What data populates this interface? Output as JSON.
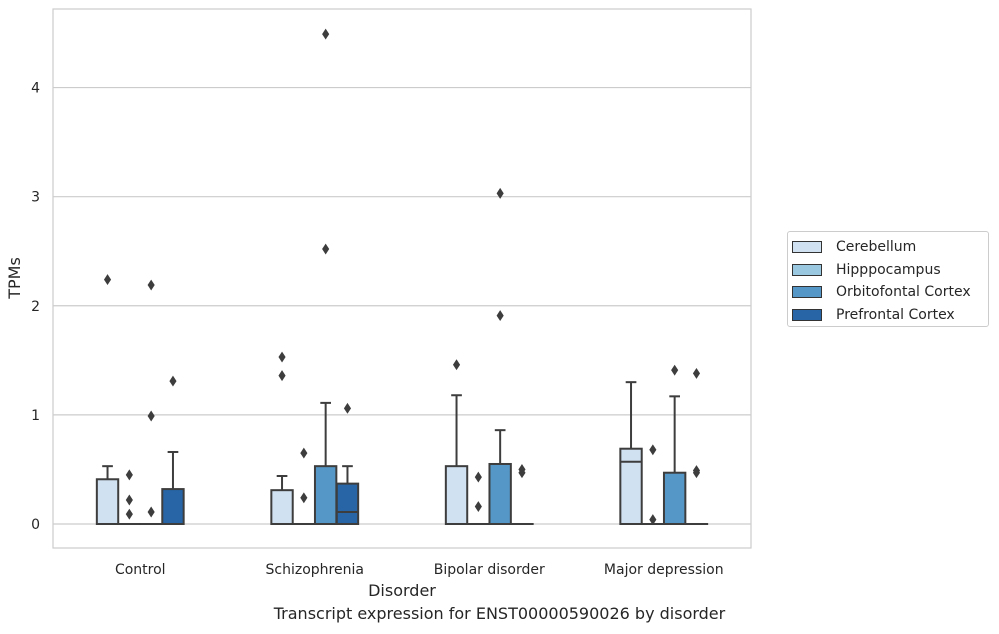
{
  "chart_data": {
    "type": "box",
    "title": "Transcript expression for ENST00000590026 by disorder",
    "xlabel": "Disorder",
    "ylabel": "TPMs",
    "ylim": [
      -0.22,
      4.72
    ],
    "yticks": [
      0,
      1,
      2,
      3,
      4
    ],
    "categories": [
      "Control",
      "Schizophrenia",
      "Bipolar disorder",
      "Major depression"
    ],
    "grid": "horizontal",
    "legend_position": "right",
    "series": [
      {
        "name": "Cerebellum",
        "color": "#d0e1f2",
        "boxes": [
          {
            "q1": 0,
            "median": 0,
            "q3": 0.41,
            "whisker_low": 0,
            "whisker_high": 0.53,
            "outliers": [
              2.24
            ]
          },
          {
            "q1": 0,
            "median": 0,
            "q3": 0.31,
            "whisker_low": 0,
            "whisker_high": 0.44,
            "outliers": [
              1.36,
              1.53
            ]
          },
          {
            "q1": 0,
            "median": 0,
            "q3": 0.53,
            "whisker_low": 0,
            "whisker_high": 1.18,
            "outliers": [
              1.46
            ]
          },
          {
            "q1": 0,
            "median": 0.57,
            "q3": 0.69,
            "whisker_low": 0,
            "whisker_high": 1.3,
            "outliers": []
          }
        ]
      },
      {
        "name": "Hipppocampus",
        "color": "#9ac8e0",
        "boxes": [
          {
            "q1": 0,
            "median": 0,
            "q3": 0,
            "whisker_low": 0,
            "whisker_high": 0,
            "outliers": [
              0.09,
              0.22,
              0.45
            ]
          },
          {
            "q1": 0,
            "median": 0,
            "q3": 0,
            "whisker_low": 0,
            "whisker_high": 0,
            "outliers": [
              0.24,
              0.65
            ]
          },
          {
            "q1": 0,
            "median": 0,
            "q3": 0,
            "whisker_low": 0,
            "whisker_high": 0,
            "outliers": [
              0.16,
              0.43
            ]
          },
          {
            "q1": 0,
            "median": 0,
            "q3": 0,
            "whisker_low": 0,
            "whisker_high": 0,
            "outliers": [
              0.04,
              0.68
            ]
          }
        ]
      },
      {
        "name": "Orbitofontal Cortex",
        "color": "#5597c7",
        "boxes": [
          {
            "q1": 0,
            "median": 0,
            "q3": 0,
            "whisker_low": 0,
            "whisker_high": 0,
            "outliers": [
              0.11,
              0.99,
              2.19
            ]
          },
          {
            "q1": 0,
            "median": 0,
            "q3": 0.53,
            "whisker_low": 0,
            "whisker_high": 1.11,
            "outliers": [
              2.52,
              4.49
            ]
          },
          {
            "q1": 0,
            "median": 0,
            "q3": 0.55,
            "whisker_low": 0,
            "whisker_high": 0.86,
            "outliers": [
              1.91,
              3.03
            ]
          },
          {
            "q1": 0,
            "median": 0,
            "q3": 0.47,
            "whisker_low": 0,
            "whisker_high": 1.17,
            "outliers": [
              1.41
            ]
          }
        ]
      },
      {
        "name": "Prefrontal Cortex",
        "color": "#2765a7",
        "boxes": [
          {
            "q1": 0,
            "median": 0,
            "q3": 0.32,
            "whisker_low": 0,
            "whisker_high": 0.66,
            "outliers": [
              1.31
            ]
          },
          {
            "q1": 0,
            "median": 0.11,
            "q3": 0.37,
            "whisker_low": 0,
            "whisker_high": 0.53,
            "outliers": [
              1.06
            ]
          },
          {
            "q1": 0,
            "median": 0,
            "q3": 0,
            "whisker_low": 0,
            "whisker_high": 0,
            "outliers": [
              0.47,
              0.5
            ]
          },
          {
            "q1": 0,
            "median": 0,
            "q3": 0,
            "whisker_low": 0,
            "whisker_high": 0,
            "outliers": [
              0.47,
              0.49,
              1.38
            ]
          }
        ]
      }
    ]
  }
}
